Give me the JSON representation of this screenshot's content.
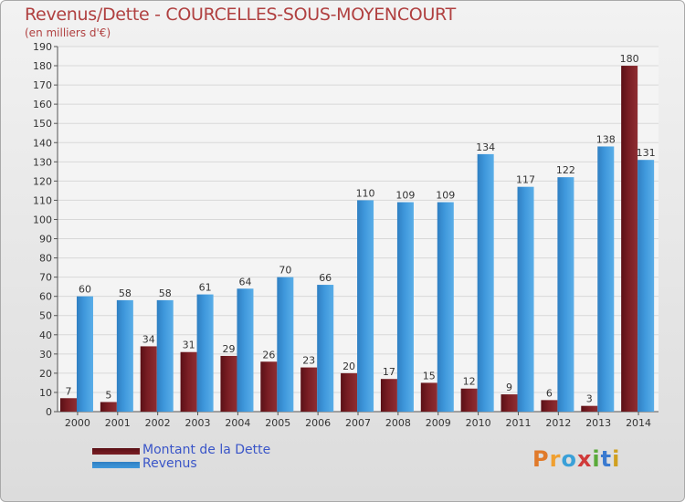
{
  "title": "Revenus/Dette - COURCELLES-SOUS-MOYENCOURT",
  "subtitle": "(en milliers d'€)",
  "logo": "Proxiti",
  "colors": {
    "debt": "#7a1e24",
    "revenue": "#3f98dc",
    "title": "#b04040"
  },
  "chart_data": {
    "type": "bar",
    "categories": [
      "2000",
      "2001",
      "2002",
      "2003",
      "2004",
      "2005",
      "2006",
      "2007",
      "2008",
      "2009",
      "2010",
      "2011",
      "2012",
      "2013",
      "2014"
    ],
    "series": [
      {
        "name": "Montant de la Dette",
        "values": [
          7,
          5,
          34,
          31,
          29,
          26,
          23,
          20,
          17,
          15,
          12,
          9,
          6,
          3,
          180
        ]
      },
      {
        "name": "Revenus",
        "values": [
          60,
          58,
          58,
          61,
          64,
          70,
          66,
          110,
          109,
          109,
          134,
          117,
          122,
          138,
          131
        ]
      }
    ],
    "ylim": [
      0,
      190
    ],
    "yticks": [
      0,
      10,
      20,
      30,
      40,
      50,
      60,
      70,
      80,
      90,
      100,
      110,
      120,
      130,
      140,
      150,
      160,
      170,
      180,
      190
    ],
    "grid": true,
    "legend": "bottom-left"
  }
}
